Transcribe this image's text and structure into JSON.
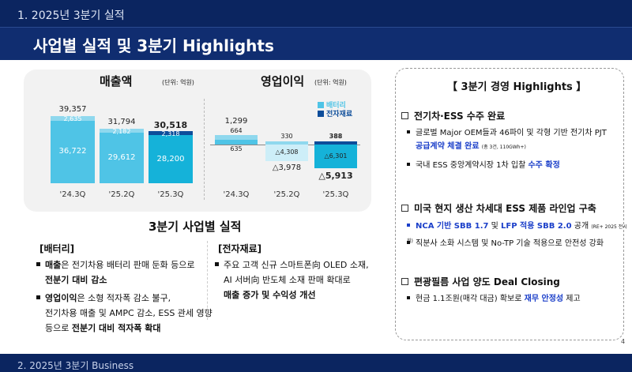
{
  "header": {
    "section_label": "1. 2025년 3분기 실적",
    "title": "사업별 실적 및 3분기 Highlights"
  },
  "charts": {
    "revenue": {
      "title": "매출액",
      "unit": "(단위: 억원)"
    },
    "op": {
      "title": "영업이익",
      "unit": "(단위: 억원)"
    },
    "legend": {
      "battery": "배터리",
      "material": "전자재료"
    }
  },
  "chart_data": [
    {
      "type": "bar",
      "title": "매출액",
      "categories": [
        "'24.3Q",
        "'25.2Q",
        "'25.3Q"
      ],
      "series": [
        {
          "name": "배터리",
          "values": [
            36722,
            29612,
            28200
          ]
        },
        {
          "name": "전자재료",
          "values": [
            2635,
            2182,
            2318
          ]
        }
      ],
      "totals": [
        "39,357",
        "31,794",
        "30,518"
      ],
      "value_labels": {
        "battery": [
          "36,722",
          "29,612",
          "28,200"
        ],
        "material": [
          "2,635",
          "2,182",
          "2,318"
        ]
      }
    },
    {
      "type": "bar",
      "title": "영업이익",
      "categories": [
        "'24.3Q",
        "'25.2Q",
        "'25.3Q"
      ],
      "series": [
        {
          "name": "배터리",
          "values": [
            635,
            -4308,
            -6301
          ]
        },
        {
          "name": "전자재료",
          "values": [
            664,
            330,
            388
          ]
        }
      ],
      "totals": [
        "1,299",
        "△3,978",
        "△5,913"
      ],
      "value_labels": {
        "battery": [
          "635",
          "△4,308",
          "△6,301"
        ],
        "material": [
          "664",
          "330",
          "388"
        ]
      }
    }
  ],
  "results": {
    "title": "3분기 사업별 실적",
    "battery": {
      "heading": "[배터리]",
      "b1_a": "매출",
      "b1_b": "은 전기차용 배터리 판매 둔화 등으로",
      "b1_c": "전분기 대비 감소",
      "b2_a": "영업이익",
      "b2_b": "은 소형 적자폭 감소 불구,",
      "b2_c": "전기차용 매출 및 AMPC 감소, ESS 관세 영향",
      "b2_d": "등으로 ",
      "b2_e": "전분기 대비 적자폭 확대"
    },
    "material": {
      "heading": "[전자재료]",
      "b1_a": "주요 고객 신규 스마트폰向 OLED 소재,",
      "b1_b": "AI 서버向 반도체 소재 판매 확대로",
      "b1_c": "매출 증가 및 수익성 개선"
    }
  },
  "highlights": {
    "title": "【 3분기 경영 Highlights 】",
    "h1": "전기차·ESS 수주 완료",
    "h1_i1_a": "글로벌 Major OEM들과 46파이 및 각형 기반 전기차 PJT",
    "h1_i1_b": "공급계약 체결 완료",
    "h1_i1_c": "(총 3건, 110GWh+)",
    "h1_i2_a": "국내 ESS 중앙계약시장 1차 입찰 ",
    "h1_i2_b": "수주 확정",
    "h2": "미국 현지 생산 차세대 ESS 제품 라인업 구축",
    "h2_i1_a": "NCA 기반 SBB 1.7",
    "h2_i1_b": " 및 ",
    "h2_i1_c": "LFP 적용 SBB 2.0",
    "h2_i1_d": " 공개",
    "h2_i1_e": "(RE+ 2025 전시회)",
    "h2_i2": "직분사 소화 시스템 및 No-TP 기술 적용으로 안전성 강화",
    "h3": "편광필름 사업 양도 Deal Closing",
    "h3_i1_a": "현금 1.1조원(매각 대금) 확보로 ",
    "h3_i1_b": "재무 안정성",
    "h3_i1_c": " 제고"
  },
  "page_number": "4",
  "bottom_label": "2. 2025년 3분기 Business"
}
